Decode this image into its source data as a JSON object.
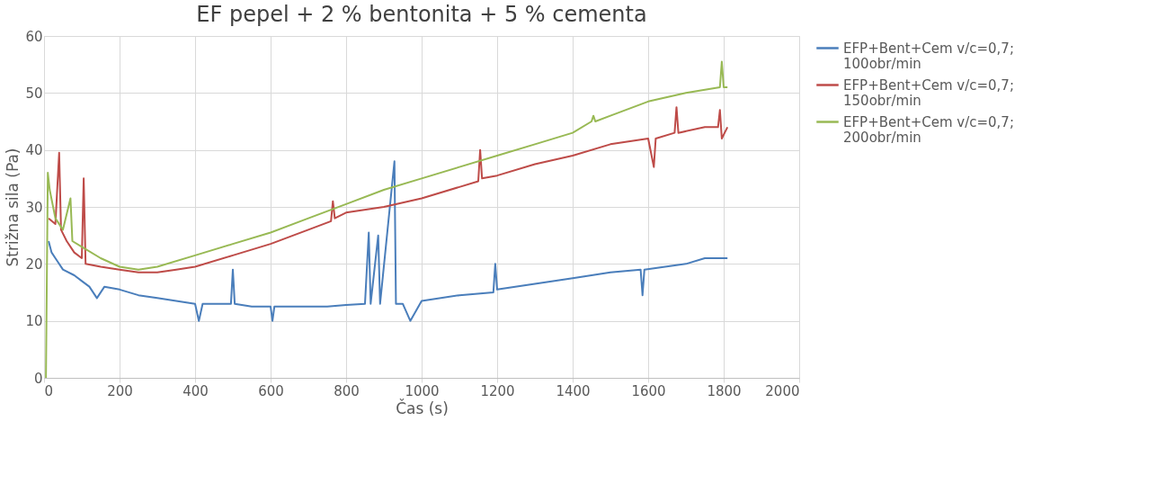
{
  "chart_data": {
    "type": "line",
    "title": "EF pepel + 2 % bentonita + 5 % cementa",
    "xlabel": "Čas (s)",
    "ylabel": "Strižna sila (Pa)",
    "xlim": [
      0,
      2000
    ],
    "xticks": [
      0,
      200,
      400,
      600,
      800,
      1000,
      1200,
      1400,
      1600,
      1800,
      2000
    ],
    "ylim": [
      0,
      60
    ],
    "yticks": [
      0,
      10,
      20,
      30,
      40,
      50,
      60
    ],
    "grid": true,
    "legend": "right",
    "marker": "none",
    "line_style": "solid",
    "series": [
      {
        "name": "EFP+Bent+Cem v/c=0,7; 100obr/min",
        "color": "#4a7ebb",
        "x": [
          12,
          20,
          30,
          50,
          80,
          100,
          120,
          140,
          160,
          200,
          250,
          300,
          350,
          400,
          410,
          420,
          450,
          495,
          500,
          505,
          550,
          600,
          605,
          610,
          700,
          750,
          800,
          850,
          860,
          865,
          885,
          890,
          928,
          932,
          950,
          970,
          1000,
          1100,
          1190,
          1195,
          1200,
          1300,
          1400,
          1500,
          1580,
          1585,
          1590,
          1700,
          1750,
          1810
        ],
        "values": [
          24,
          22,
          21,
          19,
          18,
          17,
          16,
          14,
          16,
          15.5,
          14.5,
          14,
          13.5,
          13,
          10,
          13,
          13,
          13,
          19,
          13,
          12.5,
          12.5,
          10,
          12.5,
          12.5,
          12.5,
          12.8,
          13,
          25.5,
          13,
          25,
          13,
          38,
          13,
          13,
          10,
          13.5,
          14.5,
          15,
          20,
          15.5,
          16.5,
          17.5,
          18.5,
          19,
          14.5,
          19,
          20,
          21,
          21
        ]
      },
      {
        "name": "EFP+Bent+Cem v/c=0,7; 150obr/min",
        "color": "#be4b48",
        "x": [
          12,
          30,
          40,
          45,
          60,
          80,
          100,
          105,
          110,
          150,
          200,
          250,
          300,
          350,
          400,
          500,
          600,
          700,
          760,
          765,
          770,
          800,
          900,
          1000,
          1100,
          1150,
          1155,
          1160,
          1200,
          1300,
          1400,
          1500,
          1600,
          1615,
          1620,
          1670,
          1675,
          1680,
          1750,
          1785,
          1790,
          1795,
          1810
        ],
        "values": [
          28,
          27,
          39.5,
          26,
          24,
          22,
          21,
          35,
          20,
          19.5,
          19,
          18.5,
          18.5,
          19,
          19.5,
          21.5,
          23.5,
          26,
          27.5,
          31,
          28,
          29,
          30,
          31.5,
          33.5,
          34.5,
          40,
          35,
          35.5,
          37.5,
          39,
          41,
          42,
          37,
          42,
          43,
          47.5,
          43,
          44,
          44,
          47,
          42,
          44
        ]
      },
      {
        "name": "EFP+Bent+Cem v/c=0,7; 200obr/min",
        "color": "#98b954",
        "x": [
          5,
          10,
          15,
          30,
          50,
          70,
          75,
          100,
          150,
          200,
          250,
          300,
          400,
          500,
          600,
          700,
          800,
          900,
          1000,
          1100,
          1200,
          1300,
          1400,
          1450,
          1455,
          1460,
          1500,
          1600,
          1700,
          1790,
          1795,
          1800,
          1810
        ],
        "values": [
          0,
          36,
          33,
          28,
          26,
          31.5,
          24,
          23,
          21,
          19.5,
          19,
          19.5,
          21.5,
          23.5,
          25.5,
          28,
          30.5,
          33,
          35,
          37,
          39,
          41,
          43,
          45,
          46,
          45,
          46,
          48.5,
          50,
          51,
          55.5,
          51,
          51
        ]
      }
    ]
  }
}
